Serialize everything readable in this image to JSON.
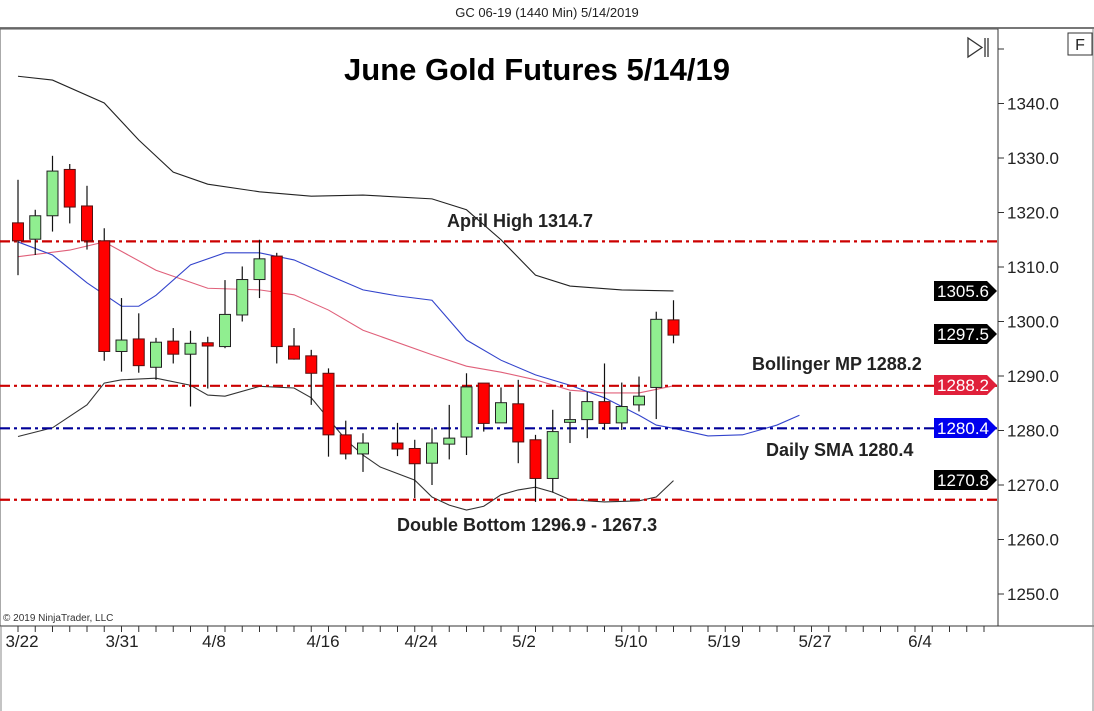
{
  "window": {
    "title": "GC 06-19 (1440 Min)  5/14/2019"
  },
  "buttons": {
    "scroll_end_icon": "play-to-end-icon",
    "f_label": "F"
  },
  "copyright": "© 2019 NinjaTrader, LLC",
  "colors": {
    "up": "#90ee90",
    "down": "#ff0000",
    "upper_band": "#222222",
    "middle_band": "#e0607a",
    "lower_band": "#333333",
    "sma": "#3344cc",
    "level_red": "#cc0000",
    "level_blue": "#000099",
    "tag_black": "#000000",
    "tag_red": "#e0203a",
    "tag_blue": "#0000ee"
  },
  "chart_data": {
    "type": "candlestick",
    "title": "June Gold Futures 5/14/19",
    "y_ticks": [
      "1340.0",
      "1330.0",
      "1320.0",
      "1310.0",
      "1300.0",
      "1290.0",
      "1280.0",
      "1270.0",
      "1260.0",
      "1250.0"
    ],
    "y_tick_values": [
      1340,
      1330,
      1320,
      1310,
      1300,
      1290,
      1280,
      1270,
      1260,
      1250
    ],
    "ylim": [
      1246,
      1355
    ],
    "x_ticks": [
      "3/22",
      "3/31",
      "4/8",
      "4/16",
      "4/24",
      "5/2",
      "5/10",
      "5/19",
      "5/27",
      "6/4"
    ],
    "candles": [
      [
        1318.1,
        1326.0,
        1308.5,
        1314.8
      ],
      [
        1315.1,
        1320.5,
        1312.2,
        1319.4
      ],
      [
        1319.4,
        1330.4,
        1316.5,
        1327.6
      ],
      [
        1327.9,
        1328.9,
        1318.0,
        1321.0
      ],
      [
        1321.2,
        1324.9,
        1313.2,
        1314.8
      ],
      [
        1314.8,
        1317.1,
        1292.8,
        1294.5
      ],
      [
        1294.5,
        1304.3,
        1290.8,
        1296.6
      ],
      [
        1296.8,
        1301.5,
        1290.6,
        1291.9
      ],
      [
        1291.6,
        1297.0,
        1289.3,
        1296.2
      ],
      [
        1296.4,
        1298.8,
        1292.3,
        1294.0
      ],
      [
        1294.0,
        1298.3,
        1284.4,
        1296.0
      ],
      [
        1296.1,
        1297.2,
        1287.7,
        1295.5
      ],
      [
        1295.4,
        1307.6,
        1295.1,
        1301.3
      ],
      [
        1301.2,
        1310.1,
        1300.0,
        1307.7
      ],
      [
        1307.7,
        1315.0,
        1304.3,
        1311.5
      ],
      [
        1312.0,
        1312.6,
        1292.3,
        1295.4
      ],
      [
        1295.5,
        1298.8,
        1293.0,
        1293.1
      ],
      [
        1293.7,
        1294.8,
        1284.7,
        1290.5
      ],
      [
        1290.5,
        1291.4,
        1275.2,
        1279.2
      ],
      [
        1279.2,
        1281.8,
        1274.7,
        1275.7
      ],
      [
        1275.7,
        1279.5,
        1272.4,
        1277.7
      ],
      null,
      [
        1277.7,
        1281.4,
        1275.3,
        1276.6
      ],
      [
        1276.7,
        1278.3,
        1267.6,
        1273.9
      ],
      [
        1274.0,
        1280.4,
        1270.0,
        1277.7
      ],
      [
        1277.5,
        1284.7,
        1274.7,
        1278.6
      ],
      [
        1278.8,
        1290.5,
        1275.5,
        1288.0
      ],
      [
        1288.7,
        1288.7,
        1279.8,
        1281.3
      ],
      [
        1281.4,
        1287.9,
        1281.4,
        1285.1
      ],
      [
        1284.9,
        1289.3,
        1274.0,
        1277.9
      ],
      [
        1278.3,
        1279.2,
        1266.9,
        1271.2
      ],
      [
        1271.2,
        1283.8,
        1268.6,
        1279.8
      ],
      [
        1281.5,
        1287.1,
        1277.7,
        1282.0
      ],
      [
        1282.0,
        1287.1,
        1278.6,
        1285.3
      ],
      [
        1285.3,
        1292.3,
        1280.1,
        1281.3
      ],
      [
        1281.4,
        1288.8,
        1280.1,
        1284.4
      ],
      [
        1284.7,
        1289.9,
        1283.5,
        1286.3
      ],
      [
        1287.9,
        1301.8,
        1282.1,
        1300.4
      ],
      [
        1300.3,
        1303.9,
        1296.0,
        1297.5
      ]
    ],
    "candle_fields": [
      "open",
      "high",
      "low",
      "close"
    ],
    "lines": {
      "upper_band": [
        [
          0,
          1345.0
        ],
        [
          2,
          1344.3
        ],
        [
          5,
          1340.1
        ],
        [
          7,
          1333.3
        ],
        [
          9,
          1327.4
        ],
        [
          11,
          1325.2
        ],
        [
          14,
          1323.8
        ],
        [
          17,
          1323.0
        ],
        [
          20,
          1323.2
        ],
        [
          24,
          1322.5
        ],
        [
          26,
          1320.5
        ],
        [
          28,
          1315.0
        ],
        [
          30,
          1308.5
        ],
        [
          32,
          1306.5
        ],
        [
          35,
          1305.8
        ],
        [
          38,
          1305.6
        ]
      ],
      "middle_band": [
        [
          0,
          1311.9
        ],
        [
          3,
          1313.1
        ],
        [
          5,
          1314.6
        ],
        [
          8,
          1309.4
        ],
        [
          11,
          1306.1
        ],
        [
          14,
          1305.8
        ],
        [
          16,
          1304.9
        ],
        [
          18,
          1302.1
        ],
        [
          20,
          1298.4
        ],
        [
          24,
          1293.9
        ],
        [
          26,
          1291.8
        ],
        [
          28,
          1290.7
        ],
        [
          30,
          1289.3
        ],
        [
          32,
          1287.4
        ],
        [
          34,
          1286.9
        ],
        [
          36,
          1286.9
        ],
        [
          38,
          1288.2
        ]
      ],
      "sma": [
        [
          0,
          1314.6
        ],
        [
          2,
          1312.2
        ],
        [
          4,
          1307.1
        ],
        [
          6,
          1302.8
        ],
        [
          7,
          1302.8
        ],
        [
          8,
          1304.8
        ],
        [
          10,
          1310.4
        ],
        [
          12,
          1312.6
        ],
        [
          14,
          1312.6
        ],
        [
          16,
          1311.3
        ],
        [
          18,
          1308.5
        ],
        [
          20,
          1305.8
        ],
        [
          22,
          1304.7
        ],
        [
          24,
          1303.9
        ],
        [
          26,
          1296.6
        ],
        [
          28,
          1292.9
        ],
        [
          30,
          1290.2
        ],
        [
          32,
          1288.3
        ],
        [
          34,
          1286.0
        ],
        [
          36,
          1282.8
        ],
        [
          37,
          1281.0
        ],
        [
          38,
          1280.4
        ],
        [
          40,
          1279.0
        ],
        [
          42,
          1279.2
        ],
        [
          44,
          1281.0
        ],
        [
          45.3,
          1282.8
        ]
      ],
      "lower_band": [
        [
          0,
          1278.9
        ],
        [
          2,
          1280.5
        ],
        [
          4,
          1284.7
        ],
        [
          5,
          1288.7
        ],
        [
          6,
          1289.3
        ],
        [
          8,
          1289.6
        ],
        [
          10,
          1288.3
        ],
        [
          11,
          1286.5
        ],
        [
          12,
          1286.3
        ],
        [
          14,
          1288.1
        ],
        [
          16,
          1287.8
        ],
        [
          17,
          1286.0
        ],
        [
          19,
          1278.3
        ],
        [
          20,
          1275.5
        ],
        [
          21,
          1273.3
        ],
        [
          23,
          1270.9
        ],
        [
          24,
          1267.8
        ],
        [
          25,
          1266.3
        ],
        [
          26,
          1265.4
        ],
        [
          27,
          1266.1
        ],
        [
          28,
          1268.2
        ],
        [
          29,
          1269.1
        ],
        [
          30,
          1269.6
        ],
        [
          31,
          1268.7
        ],
        [
          32,
          1267.3
        ],
        [
          34,
          1266.9
        ],
        [
          36,
          1267.1
        ],
        [
          37,
          1267.8
        ],
        [
          38,
          1270.8
        ]
      ]
    },
    "levels": [
      {
        "value": 1314.7,
        "label": "April High 1314.7",
        "style": "red"
      },
      {
        "value": 1288.2,
        "label": "Bollinger MP 1288.2",
        "style": "red"
      },
      {
        "value": 1280.4,
        "label": "Daily SMA 1280.4",
        "style": "blue"
      },
      {
        "value": 1267.3,
        "label": "Double Bottom 1296.9 - 1267.3",
        "style": "red"
      }
    ],
    "price_tags": [
      {
        "value": 1305.6,
        "text": "1305.6",
        "style": "black"
      },
      {
        "value": 1297.5,
        "text": "1297.5",
        "style": "black"
      },
      {
        "value": 1288.2,
        "text": "1288.2",
        "style": "red"
      },
      {
        "value": 1280.4,
        "text": "1280.4",
        "style": "blue"
      },
      {
        "value": 1270.8,
        "text": "1270.8",
        "style": "black"
      }
    ]
  }
}
